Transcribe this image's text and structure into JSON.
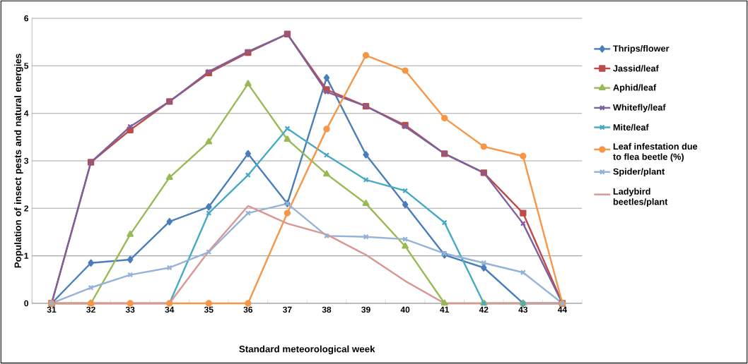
{
  "chart_data": {
    "type": "line",
    "xlabel": "Standard meteorological week",
    "ylabel": "Population of insect pests and natural energies",
    "categories": [
      "31",
      "32",
      "33",
      "34",
      "35",
      "36",
      "37",
      "38",
      "39",
      "40",
      "41",
      "42",
      "43",
      "44"
    ],
    "ylim": [
      0,
      6
    ],
    "yticks": [
      0,
      1,
      2,
      3,
      4,
      5,
      6
    ],
    "grid": "y",
    "legend": "right",
    "series": [
      {
        "name": "Thrips/flower",
        "color": "#4a7ebb",
        "marker": "diamond",
        "values": [
          0,
          0.85,
          0.92,
          1.72,
          2.03,
          3.15,
          2.1,
          4.75,
          3.13,
          2.08,
          1.02,
          0.75,
          0,
          0
        ]
      },
      {
        "name": "Jassid/leaf",
        "color": "#be4b48",
        "marker": "square",
        "values": [
          0,
          2.97,
          3.65,
          4.25,
          4.85,
          5.28,
          5.67,
          4.5,
          4.15,
          3.75,
          3.15,
          2.75,
          1.9,
          0
        ]
      },
      {
        "name": "Aphid/leaf",
        "color": "#98b954",
        "marker": "triangle",
        "values": [
          0,
          0,
          1.45,
          2.65,
          3.4,
          4.62,
          3.45,
          2.72,
          2.1,
          1.2,
          0,
          0,
          0,
          0
        ]
      },
      {
        "name": "Whitefly/leaf",
        "color": "#7d60a0",
        "marker": "cross",
        "values": [
          0,
          2.97,
          3.72,
          4.25,
          4.88,
          5.3,
          5.67,
          4.45,
          4.15,
          3.72,
          3.15,
          2.75,
          1.68,
          0
        ]
      },
      {
        "name": "Mite/leaf",
        "color": "#46aac5",
        "marker": "cross",
        "values": [
          0,
          0,
          0,
          0,
          1.9,
          2.7,
          3.68,
          3.12,
          2.6,
          2.37,
          1.7,
          0,
          0,
          0
        ]
      },
      {
        "name": "Leaf infestation due to flea beetle (%)",
        "color": "#f79646",
        "marker": "circle",
        "values": [
          0,
          0,
          0,
          0,
          0,
          0,
          1.9,
          3.67,
          5.22,
          4.9,
          3.9,
          3.3,
          3.1,
          0
        ]
      },
      {
        "name": "Spider/plant",
        "color": "#95b3d7",
        "marker": "cross",
        "values": [
          0,
          0.33,
          0.6,
          0.75,
          1.08,
          1.9,
          2.1,
          1.42,
          1.4,
          1.35,
          1.05,
          0.85,
          0.65,
          0
        ]
      },
      {
        "name": "Ladybird beetles/plant",
        "color": "#d99694",
        "marker": "none",
        "values": [
          0,
          0,
          0,
          0,
          1.1,
          2.05,
          1.68,
          1.45,
          1.02,
          0.47,
          0,
          0,
          0,
          0
        ]
      }
    ]
  }
}
